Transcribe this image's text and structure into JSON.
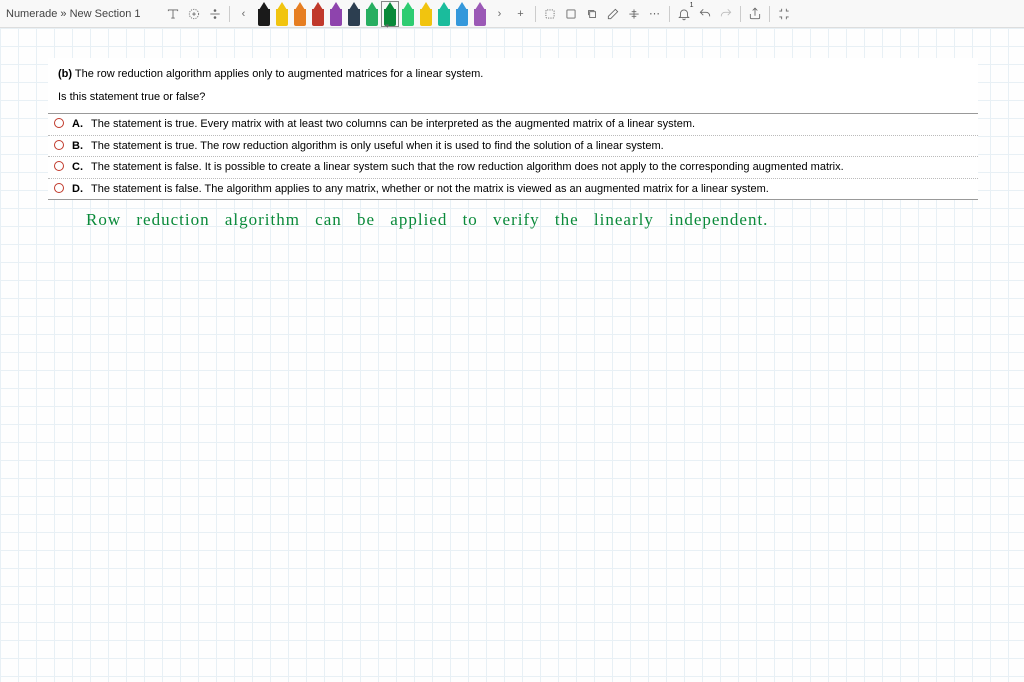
{
  "toolbar": {
    "title": "Numerade » New Section 1",
    "pens": [
      {
        "color": "#1a1a1a"
      },
      {
        "color": "#f1c40f"
      },
      {
        "color": "#e67e22"
      },
      {
        "color": "#c0392b"
      },
      {
        "color": "#8e44ad"
      },
      {
        "color": "#2c3e50"
      },
      {
        "color": "#27ae60"
      },
      {
        "color": "#0a8a3a",
        "selected": true
      },
      {
        "color": "#2ecc71"
      },
      {
        "color": "#f1c40f"
      },
      {
        "color": "#1abc9c"
      },
      {
        "color": "#3498db"
      },
      {
        "color": "#9b59b6"
      }
    ]
  },
  "question": {
    "label": "(b)",
    "prompt": "The row reduction algorithm applies only to augmented matrices for a linear system.",
    "subprompt": "Is this statement true or false?",
    "options": [
      {
        "letter": "A.",
        "text": "The statement is true. Every matrix with at least two columns can be interpreted as the augmented matrix of a linear system."
      },
      {
        "letter": "B.",
        "text": "The statement is true. The row reduction algorithm is only useful when it is used to find the solution of a linear system."
      },
      {
        "letter": "C.",
        "text": "The statement is false. It is possible to create a linear system such that the row reduction algorithm does not apply to the corresponding augmented matrix."
      },
      {
        "letter": "D.",
        "text": "The statement is false. The algorithm applies to any matrix, whether or not the matrix is viewed as an augmented matrix for a linear system."
      }
    ]
  },
  "handwriting": {
    "line1": "Row reduction algorithm can be applied to verify the linearly independent."
  },
  "canvas": {
    "grid_color": "#e8f0f5",
    "grid_size": 18,
    "background": "#fefefe"
  }
}
